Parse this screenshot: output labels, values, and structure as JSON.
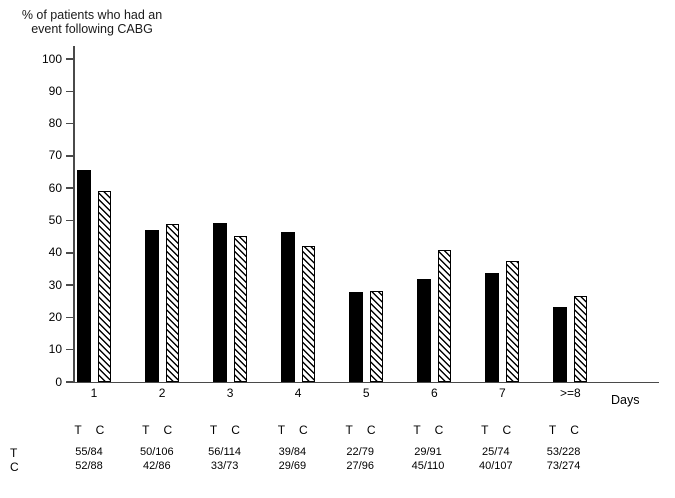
{
  "chart_data": {
    "type": "bar",
    "title": "% of patients who had an event following CABG",
    "title_lines": [
      "% of patients who had an",
      "event following CABG"
    ],
    "xlabel": "Days",
    "ylabel": "% of patients who had an event following CABG",
    "ylim": [
      0,
      100
    ],
    "yticks": [
      0,
      10,
      20,
      30,
      40,
      50,
      60,
      70,
      80,
      90,
      100
    ],
    "grid": false,
    "legend_position": "none",
    "categories": [
      "1",
      "2",
      "3",
      "4",
      "5",
      "6",
      "7",
      ">=8"
    ],
    "series": [
      {
        "name": "T",
        "style": "solid-black",
        "values": [
          65.5,
          47.2,
          49.1,
          46.4,
          27.8,
          31.9,
          33.8,
          23.2
        ],
        "fractions": [
          "55/84",
          "50/106",
          "56/114",
          "39/84",
          "22/79",
          "29/91",
          "25/74",
          "53/228"
        ]
      },
      {
        "name": "C",
        "style": "white-diagonal-hatch",
        "values": [
          59.1,
          48.8,
          45.2,
          42.0,
          28.1,
          40.9,
          37.4,
          26.6
        ],
        "fractions": [
          "52/88",
          "42/86",
          "33/73",
          "29/69",
          "27/96",
          "45/110",
          "40/107",
          "73/274"
        ]
      }
    ],
    "footer_row_labels": [
      "T",
      "C"
    ]
  },
  "colors": {
    "bar_t": "#000000",
    "bar_c_fill": "#ffffff",
    "bar_c_stripe": "#000000",
    "axis": "#4a4a4a",
    "text": "#000000",
    "background": "#ffffff"
  }
}
